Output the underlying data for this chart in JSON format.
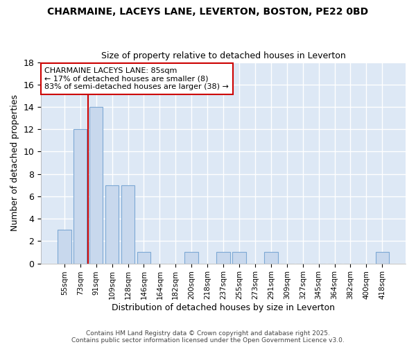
{
  "title1": "CHARMAINE, LACEYS LANE, LEVERTON, BOSTON, PE22 0BD",
  "title2": "Size of property relative to detached houses in Leverton",
  "xlabel": "Distribution of detached houses by size in Leverton",
  "ylabel": "Number of detached properties",
  "categories": [
    "55sqm",
    "73sqm",
    "91sqm",
    "109sqm",
    "128sqm",
    "146sqm",
    "164sqm",
    "182sqm",
    "200sqm",
    "218sqm",
    "237sqm",
    "255sqm",
    "273sqm",
    "291sqm",
    "309sqm",
    "327sqm",
    "345sqm",
    "364sqm",
    "382sqm",
    "400sqm",
    "418sqm"
  ],
  "values": [
    3,
    12,
    14,
    7,
    7,
    1,
    0,
    0,
    1,
    0,
    1,
    1,
    0,
    1,
    0,
    0,
    0,
    0,
    0,
    0,
    1
  ],
  "bar_color": "#c8d8ed",
  "bar_edge_color": "#7da8d4",
  "vline_x": 1.5,
  "vline_color": "#cc0000",
  "ylim": [
    0,
    18
  ],
  "yticks": [
    0,
    2,
    4,
    6,
    8,
    10,
    12,
    14,
    16,
    18
  ],
  "annotation_title": "CHARMAINE LACEYS LANE: 85sqm",
  "annotation_line1": "← 17% of detached houses are smaller (8)",
  "annotation_line2": "83% of semi-detached houses are larger (38) →",
  "annotation_box_color": "#ffffff",
  "annotation_box_edge": "#cc0000",
  "plot_bg_color": "#dde8f5",
  "fig_bg_color": "#ffffff",
  "grid_color": "#ffffff",
  "footer1": "Contains HM Land Registry data © Crown copyright and database right 2025.",
  "footer2": "Contains public sector information licensed under the Open Government Licence v3.0."
}
